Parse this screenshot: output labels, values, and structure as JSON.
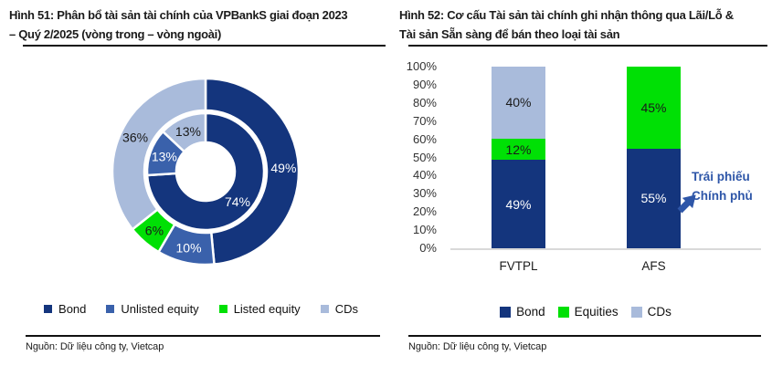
{
  "colors": {
    "bond": "#14357d",
    "unlisted_equity": "#3a61ab",
    "listed_equity": "#00e005",
    "cds": "#a9bbdb",
    "annotation_blue": "#2e56a8",
    "axis_line": "#d9d9d9",
    "rule_black": "#111111"
  },
  "panels": [
    {
      "title": "Hình 51: Phân bổ tài sản tài chính của VPBankS giai đoạn 2023 – Quý 2/2025 (vòng trong – vòng ngoài)",
      "title_lines": [
        "Hình 51: Phân bổ tài sản tài chính của VPBankS giai đoạn 2023",
        "– Quý 2/2025 (vòng trong – vòng ngoài)"
      ],
      "legend": [
        {
          "label": "Bond",
          "color": "#14357d"
        },
        {
          "label": "Unlisted equity",
          "color": "#3a61ab"
        },
        {
          "label": "Listed equity",
          "color": "#00e005"
        },
        {
          "label": "CDs",
          "color": "#a9bbdb"
        }
      ],
      "source": "Nguồn: Dữ liệu công ty, Vietcap"
    },
    {
      "title": "Hình 52: Cơ cấu Tài sản tài chính ghi nhận thông qua Lãi/Lỗ & Tài sản Sẵn sàng để bán theo loại tài sản",
      "title_lines": [
        "Hình 52: Cơ cấu Tài sản tài chính ghi nhận thông qua Lãi/Lỗ &",
        "Tài sản Sẵn sàng để bán theo loại tài sản"
      ],
      "annotation_line1": "Trái phiếu",
      "annotation_line2": "Chính phủ",
      "legend": [
        {
          "label": "Bond",
          "color": "#14357d"
        },
        {
          "label": "Equities",
          "color": "#00e005"
        },
        {
          "label": "CDs",
          "color": "#a9bbdb"
        }
      ],
      "source": "Nguồn: Dữ liệu công ty, Vietcap"
    }
  ],
  "chart_data": [
    {
      "type": "pie",
      "variant": "nested-donut",
      "title": "Hình 51: Phân bổ tài sản tài chính của VPBankS giai đoạn 2023 – Quý 2/2025 (vòng trong – vòng ngoài)",
      "legend": [
        "Bond",
        "Unlisted equity",
        "Listed equity",
        "CDs"
      ],
      "legend_position": "bottom",
      "rings": [
        {
          "position": "inner",
          "segments": [
            {
              "label": "Bond",
              "value": 74,
              "display": "74%",
              "color": "#14357d",
              "label_color": "#ffffff"
            },
            {
              "label": "Unlisted equity",
              "value": 13,
              "display": "13%",
              "color": "#3a61ab",
              "label_color": "#ffffff"
            },
            {
              "label": "CDs",
              "value": 13,
              "display": "13%",
              "color": "#a9bbdb",
              "label_color": "#1a1a1a"
            }
          ]
        },
        {
          "position": "outer",
          "segments": [
            {
              "label": "Bond",
              "value": 49,
              "display": "49%",
              "color": "#14357d",
              "label_color": "#ffffff"
            },
            {
              "label": "Unlisted equity",
              "value": 10,
              "display": "10%",
              "color": "#3a61ab",
              "label_color": "#ffffff"
            },
            {
              "label": "Listed equity",
              "value": 6,
              "display": "6%",
              "color": "#00e005",
              "label_color": "#1a1a1a"
            },
            {
              "label": "CDs",
              "value": 36,
              "display": "36%",
              "color": "#a9bbdb",
              "label_color": "#1a1a1a"
            }
          ]
        }
      ]
    },
    {
      "type": "bar",
      "variant": "stacked-100",
      "title": "Hình 52: Cơ cấu Tài sản tài chính ghi nhận thông qua Lãi/Lỗ & Tài sản Sẵn sàng để bán theo loại tài sản",
      "categories": [
        "FVTPL",
        "AFS"
      ],
      "series": [
        {
          "name": "Bond",
          "values": [
            49,
            55
          ],
          "displays": [
            "49%",
            "55%"
          ],
          "color": "#14357d",
          "label_color": "#ffffff"
        },
        {
          "name": "Equities",
          "values": [
            12,
            45
          ],
          "displays": [
            "12%",
            "45%"
          ],
          "color": "#00e005",
          "label_color": "#1a1a1a"
        },
        {
          "name": "CDs",
          "values": [
            40,
            0
          ],
          "displays": [
            "40%",
            ""
          ],
          "color": "#a9bbdb",
          "label_color": "#1a1a1a"
        }
      ],
      "ylim": [
        0,
        100
      ],
      "yticks": [
        "0%",
        "10%",
        "20%",
        "30%",
        "40%",
        "50%",
        "60%",
        "70%",
        "80%",
        "90%",
        "100%"
      ],
      "grid": false,
      "legend": [
        "Bond",
        "Equities",
        "CDs"
      ],
      "legend_position": "bottom",
      "annotation": {
        "text": "Trái phiếu Chính phủ",
        "target": "AFS Bond segment",
        "color": "#2e56a8"
      }
    }
  ]
}
